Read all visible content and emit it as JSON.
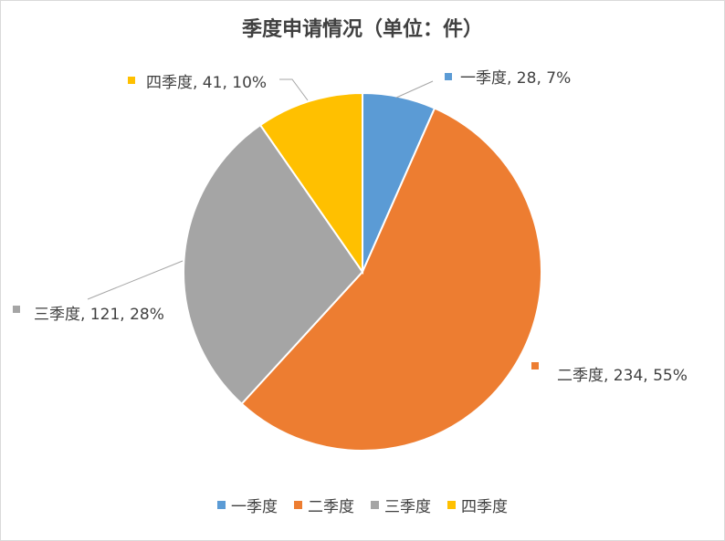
{
  "chart_data": {
    "type": "pie",
    "title": "季度申请情况（单位：件）",
    "categories": [
      "一季度",
      "二季度",
      "三季度",
      "四季度"
    ],
    "values": [
      28,
      234,
      121,
      41
    ],
    "percents": [
      "7%",
      "55%",
      "28%",
      "10%"
    ],
    "data_labels": [
      "一季度, 28, 7%",
      "二季度, 234, 55%",
      "三季度, 121, 28%",
      "四季度, 41, 10%"
    ],
    "colors": [
      "#5b9bd5",
      "#ed7d31",
      "#a5a5a5",
      "#ffc000"
    ],
    "legend_position": "bottom"
  }
}
